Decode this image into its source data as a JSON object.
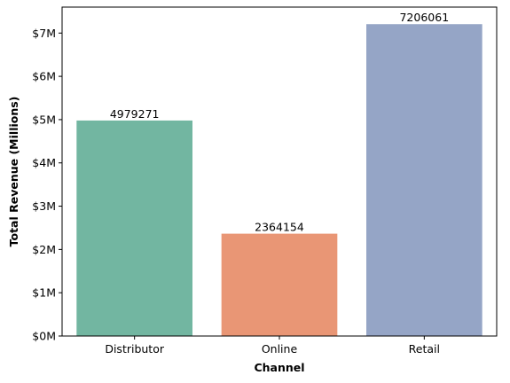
{
  "chart_data": {
    "type": "bar",
    "title": "",
    "xlabel": "Channel",
    "ylabel": "Total Revenue (Millions)",
    "categories": [
      "Distributor",
      "Online",
      "Retail"
    ],
    "values": [
      4979271,
      2364154,
      7206061
    ],
    "data_labels": [
      "4979271",
      "2364154",
      "7206061"
    ],
    "colors": [
      "#72b6a1",
      "#e99675",
      "#95a5c6"
    ],
    "ylim": [
      0,
      7600000
    ],
    "y_ticks": [
      0,
      1000000,
      2000000,
      3000000,
      4000000,
      5000000,
      6000000,
      7000000
    ],
    "y_tick_labels": [
      "$0M",
      "$1M",
      "$2M",
      "$3M",
      "$4M",
      "$5M",
      "$6M",
      "$7M"
    ],
    "grid": false,
    "legend": "none"
  }
}
